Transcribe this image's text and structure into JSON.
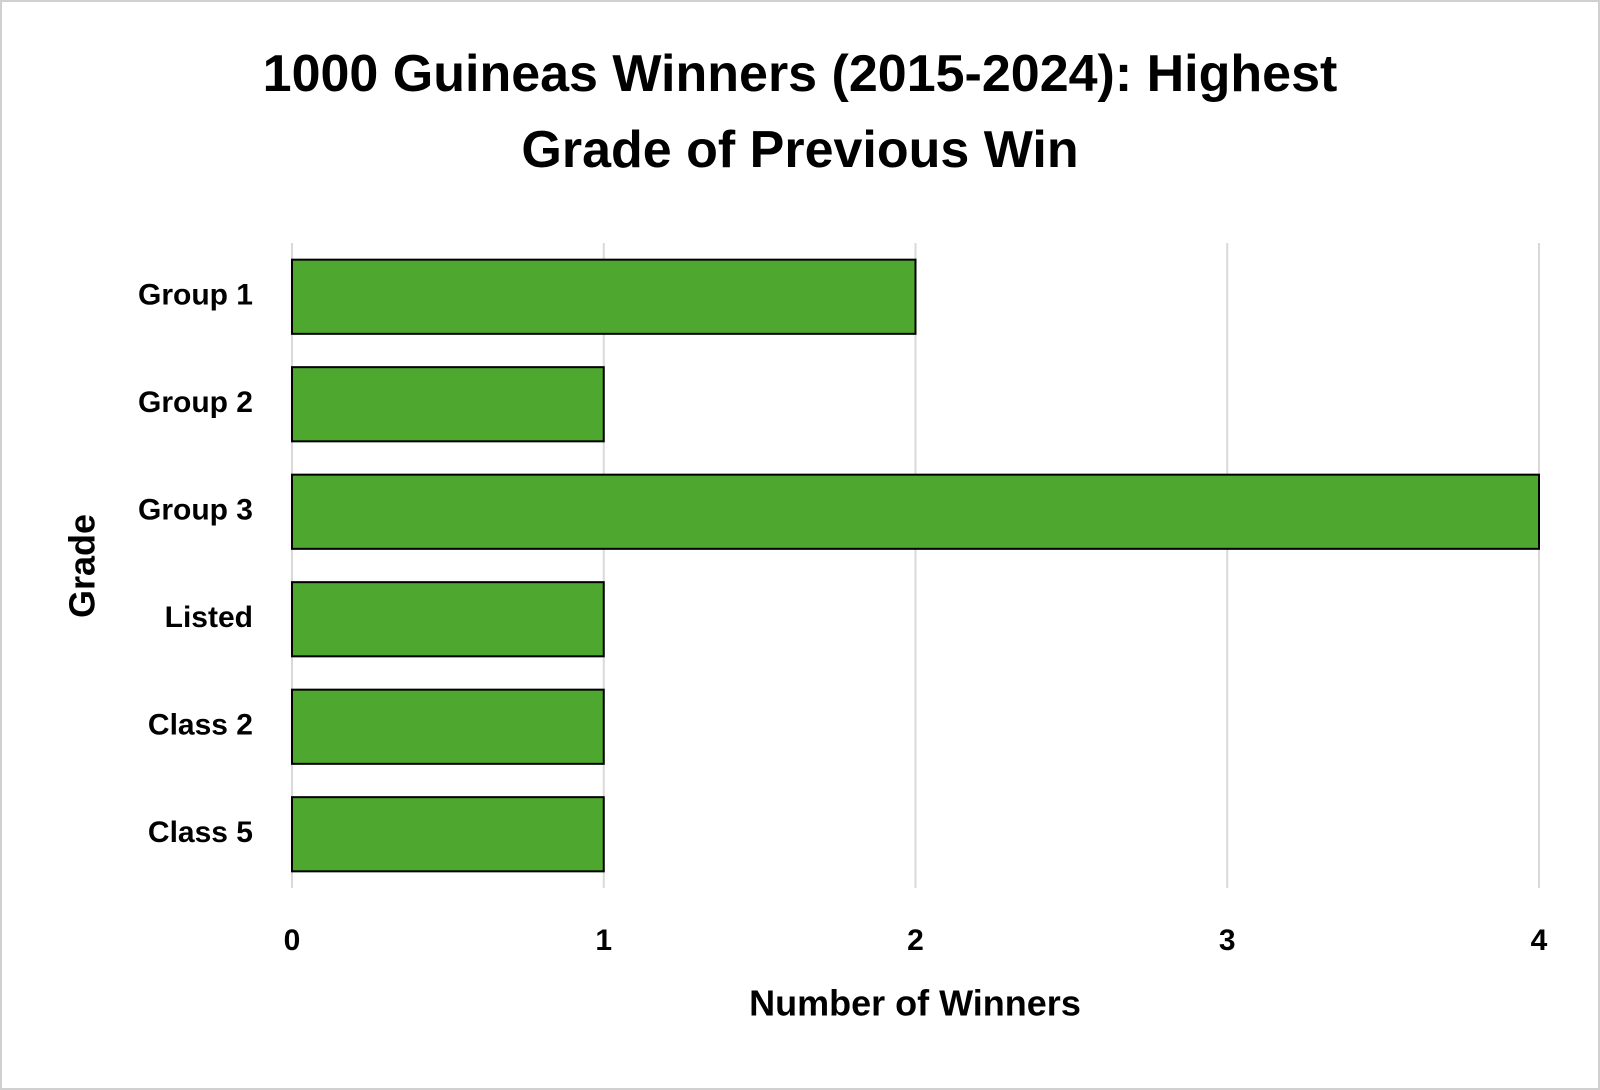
{
  "chart_data": {
    "type": "bar",
    "orientation": "horizontal",
    "title": "1000 Guineas Winners (2015-2024): Highest Grade of Previous Win",
    "x_label": "Number of Winners",
    "y_label": "Grade",
    "categories": [
      "Group 1",
      "Group 2",
      "Group 3",
      "Listed",
      "Class 2",
      "Class 5"
    ],
    "values": [
      2,
      1,
      4,
      1,
      1,
      1
    ],
    "color": "#4ea72e",
    "xlim": [
      0,
      4
    ],
    "xticks": [
      0,
      1,
      2,
      3,
      4
    ],
    "grid": true
  }
}
